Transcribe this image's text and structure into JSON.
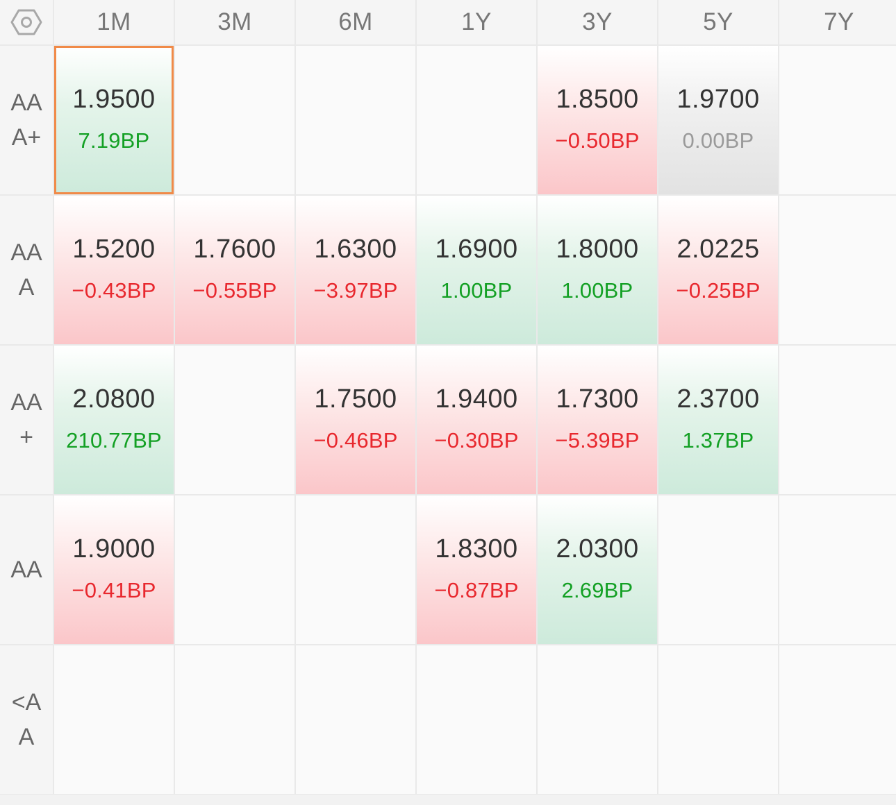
{
  "colors": {
    "up": "#e8282e",
    "down": "#13a024",
    "flat": "#9a9a9a",
    "selected_border": "#f08a48"
  },
  "settings_icon": "hexagon-gear-icon",
  "columns": [
    "1M",
    "3M",
    "6M",
    "1Y",
    "3Y",
    "5Y",
    "7Y"
  ],
  "rows": [
    {
      "label": "AAA+",
      "cells": [
        {
          "value": "1.9500",
          "change": "7.19BP",
          "trend": "down",
          "selected": true
        },
        null,
        null,
        null,
        {
          "value": "1.8500",
          "change": "−0.50BP",
          "trend": "up"
        },
        {
          "value": "1.9700",
          "change": "0.00BP",
          "trend": "flat"
        },
        null
      ]
    },
    {
      "label": "AAA",
      "cells": [
        {
          "value": "1.5200",
          "change": "−0.43BP",
          "trend": "up"
        },
        {
          "value": "1.7600",
          "change": "−0.55BP",
          "trend": "up"
        },
        {
          "value": "1.6300",
          "change": "−3.97BP",
          "trend": "up"
        },
        {
          "value": "1.6900",
          "change": "1.00BP",
          "trend": "down"
        },
        {
          "value": "1.8000",
          "change": "1.00BP",
          "trend": "down"
        },
        {
          "value": "2.0225",
          "change": "−0.25BP",
          "trend": "up"
        },
        null
      ]
    },
    {
      "label": "AA+",
      "cells": [
        {
          "value": "2.0800",
          "change": "210.77BP",
          "trend": "down"
        },
        null,
        {
          "value": "1.7500",
          "change": "−0.46BP",
          "trend": "up"
        },
        {
          "value": "1.9400",
          "change": "−0.30BP",
          "trend": "up"
        },
        {
          "value": "1.7300",
          "change": "−5.39BP",
          "trend": "up"
        },
        {
          "value": "2.3700",
          "change": "1.37BP",
          "trend": "down"
        },
        null
      ]
    },
    {
      "label": "AA",
      "cells": [
        {
          "value": "1.9000",
          "change": "−0.41BP",
          "trend": "up"
        },
        null,
        null,
        {
          "value": "1.8300",
          "change": "−0.87BP",
          "trend": "up"
        },
        {
          "value": "2.0300",
          "change": "2.69BP",
          "trend": "down"
        },
        null,
        null
      ]
    },
    {
      "label": "<AA",
      "cells": [
        null,
        null,
        null,
        null,
        null,
        null,
        null
      ]
    }
  ]
}
